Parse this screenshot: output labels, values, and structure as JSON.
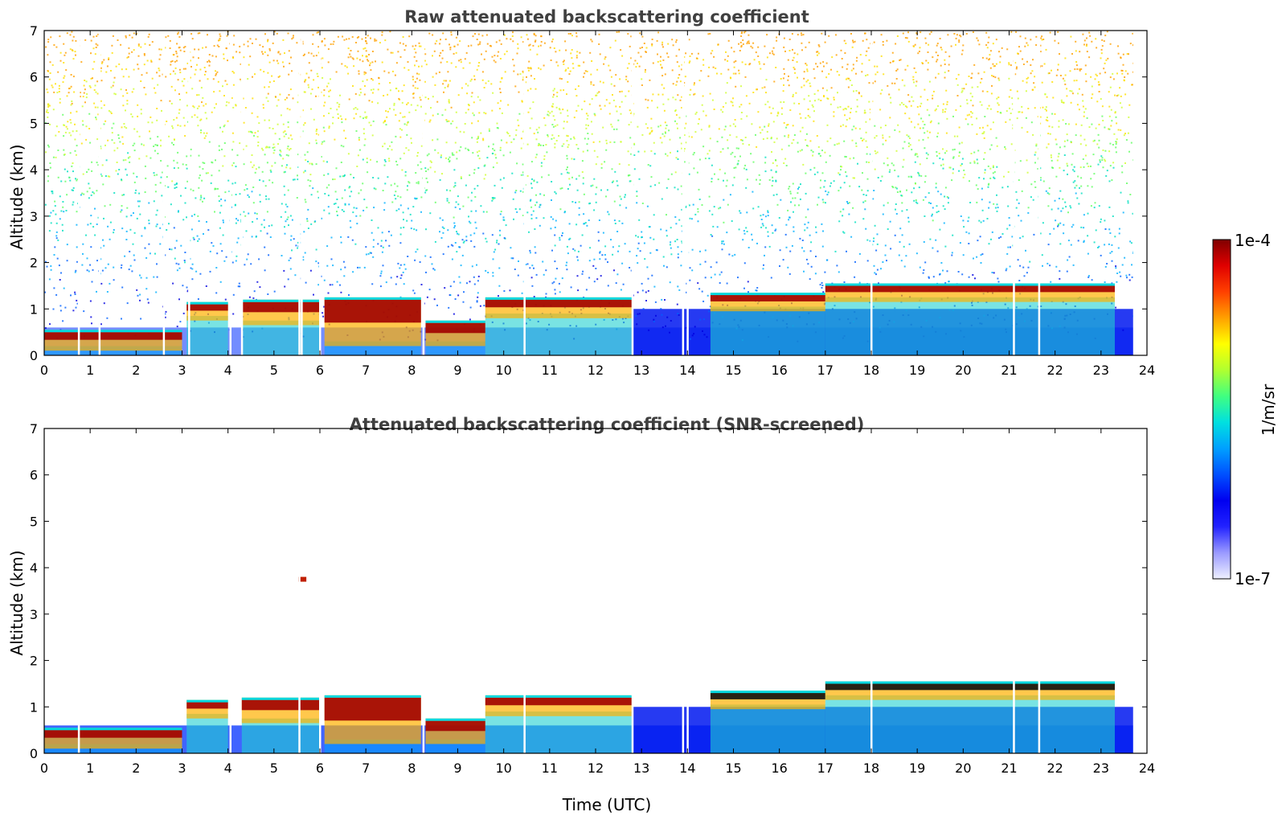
{
  "chart_data": [
    {
      "type": "heatmap",
      "title": "Raw attenuated backscattering coefficient",
      "xlabel": "",
      "ylabel": "Altitude (km)",
      "xlim": [
        0,
        24
      ],
      "ylim": [
        0,
        7
      ],
      "xticks": [
        "0",
        "1",
        "2",
        "3",
        "4",
        "5",
        "6",
        "7",
        "8",
        "9",
        "10",
        "11",
        "12",
        "13",
        "14",
        "15",
        "16",
        "17",
        "18",
        "19",
        "20",
        "21",
        "22",
        "23",
        "24"
      ],
      "yticks": [
        "0",
        "1",
        "2",
        "3",
        "4",
        "5",
        "6",
        "7"
      ],
      "data_end_hour": 23.7,
      "noise": "high",
      "gaps_hours": [
        0.75,
        1.2,
        2.6,
        3.15,
        4.05,
        4.3,
        5.55,
        5.6,
        6.0,
        8.25,
        10.45,
        12.8,
        13.9,
        14.0,
        18.0,
        21.1,
        21.65
      ],
      "cloud_layer": [
        {
          "t0": 0.0,
          "t1": 3.0,
          "base_km": 0.2,
          "top_km": 0.5
        },
        {
          "t0": 3.1,
          "t1": 4.0,
          "base_km": 0.85,
          "top_km": 1.1
        },
        {
          "t0": 4.3,
          "t1": 6.0,
          "base_km": 0.75,
          "top_km": 1.15
        },
        {
          "t0": 6.1,
          "t1": 8.2,
          "base_km": 0.3,
          "top_km": 1.2
        },
        {
          "t0": 8.3,
          "t1": 9.6,
          "base_km": 0.3,
          "top_km": 0.7
        },
        {
          "t0": 9.6,
          "t1": 12.8,
          "base_km": 0.9,
          "top_km": 1.2
        },
        {
          "t0": 14.5,
          "t1": 17.0,
          "base_km": 1.05,
          "top_km": 1.3
        },
        {
          "t0": 17.0,
          "t1": 23.3,
          "base_km": 1.25,
          "top_km": 1.5
        }
      ]
    },
    {
      "type": "heatmap",
      "title": "Attenuated backscattering coefficient (SNR-screened)",
      "xlabel": "Time (UTC)",
      "ylabel": "Altitude (km)",
      "xlim": [
        0,
        24
      ],
      "ylim": [
        0,
        7
      ],
      "xticks": [
        "0",
        "1",
        "2",
        "3",
        "4",
        "5",
        "6",
        "7",
        "8",
        "9",
        "10",
        "11",
        "12",
        "13",
        "14",
        "15",
        "16",
        "17",
        "18",
        "19",
        "20",
        "21",
        "22",
        "23",
        "24"
      ],
      "yticks": [
        "0",
        "1",
        "2",
        "3",
        "4",
        "5",
        "6",
        "7"
      ],
      "data_end_hour": 23.7,
      "noise": "none",
      "gaps_hours": [
        0.75,
        4.05,
        5.55,
        6.0,
        8.25,
        10.45,
        12.8,
        13.9,
        14.0,
        18.0,
        21.1,
        21.65
      ],
      "cloud_layer": [
        {
          "t0": 0.0,
          "t1": 3.0,
          "base_km": 0.2,
          "top_km": 0.5
        },
        {
          "t0": 3.1,
          "t1": 4.0,
          "base_km": 0.85,
          "top_km": 1.1
        },
        {
          "t0": 4.3,
          "t1": 6.0,
          "base_km": 0.75,
          "top_km": 1.15
        },
        {
          "t0": 6.1,
          "t1": 8.2,
          "base_km": 0.3,
          "top_km": 1.2
        },
        {
          "t0": 8.3,
          "t1": 9.6,
          "base_km": 0.3,
          "top_km": 0.7
        },
        {
          "t0": 9.6,
          "t1": 12.8,
          "base_km": 0.9,
          "top_km": 1.2
        },
        {
          "t0": 14.5,
          "t1": 17.0,
          "base_km": 1.05,
          "top_km": 1.3
        },
        {
          "t0": 17.0,
          "t1": 23.3,
          "base_km": 1.25,
          "top_km": 1.5
        }
      ],
      "isolated_features": [
        {
          "t_hour": 5.6,
          "alt_km": 3.75
        }
      ]
    }
  ],
  "colorbar": {
    "max_label": "1e-4",
    "min_label": "1e-7",
    "unit_label": "1/m/sr",
    "colors": [
      "#eef0ff",
      "#9a9aff",
      "#2222ff",
      "#0000f0",
      "#0050ff",
      "#00a0ff",
      "#00e0e0",
      "#40ff80",
      "#b0ff30",
      "#ffff00",
      "#ffa000",
      "#ff4000",
      "#e00000",
      "#800000"
    ]
  }
}
